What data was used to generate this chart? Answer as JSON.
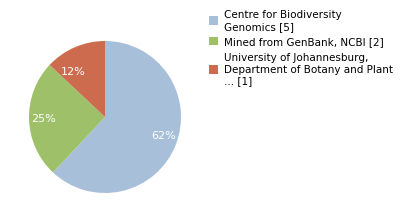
{
  "slices": [
    62,
    25,
    13
  ],
  "labels": [
    "62%",
    "25%",
    "12%"
  ],
  "colors": [
    "#a8bfda",
    "#9dc068",
    "#cc6b4e"
  ],
  "legend_labels": [
    "Centre for Biodiversity\nGenomics [5]",
    "Mined from GenBank, NCBI [2]",
    "University of Johannesburg,\nDepartment of Botany and Plant\n... [1]"
  ],
  "startangle": 90,
  "text_color": "white",
  "fontsize": 8,
  "legend_fontsize": 7.5
}
